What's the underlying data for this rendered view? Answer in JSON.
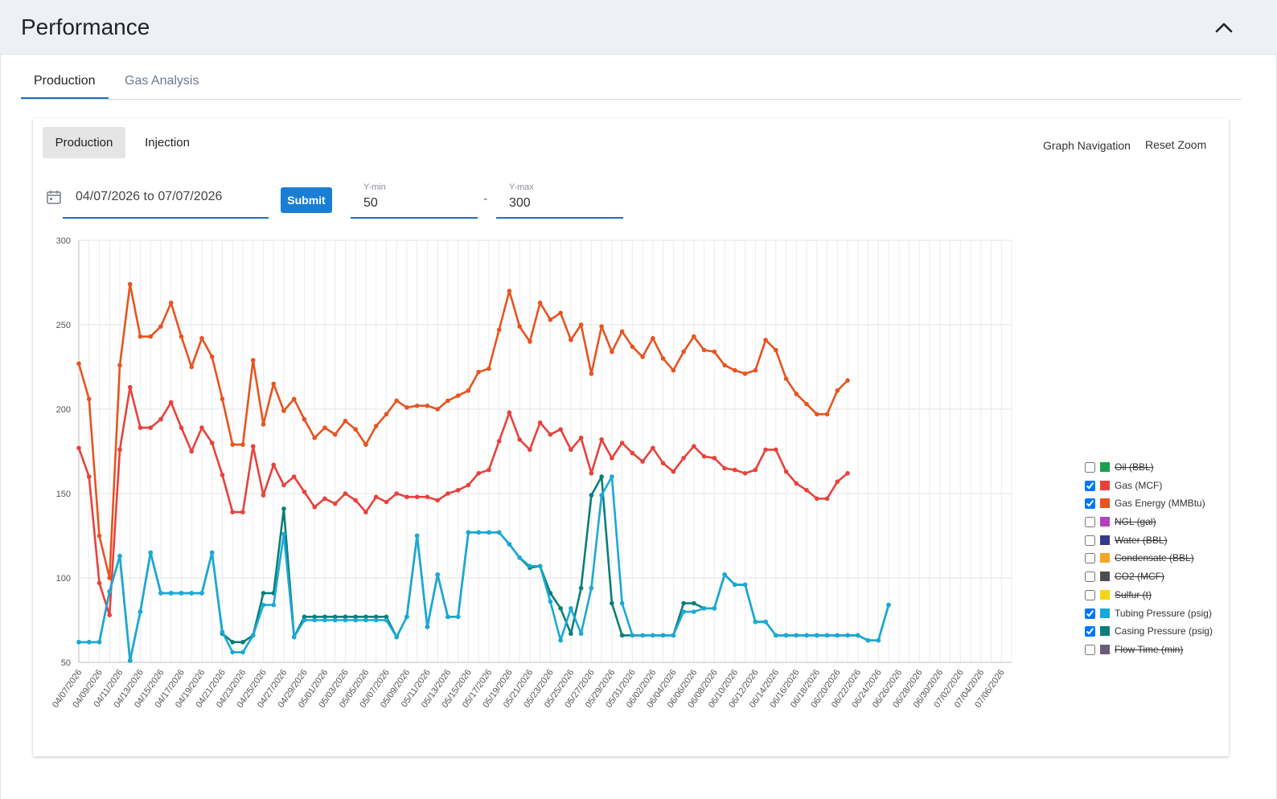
{
  "header": {
    "title": "Performance"
  },
  "tabs": [
    {
      "label": "Production",
      "active": true
    },
    {
      "label": "Gas Analysis",
      "active": false
    }
  ],
  "mode_buttons": [
    {
      "label": "Production",
      "active": true
    },
    {
      "label": "Injection",
      "active": false
    }
  ],
  "controls": {
    "graph_navigation": "Graph Navigation",
    "reset_zoom": "Reset Zoom",
    "date_range": "04/07/2026 to 07/07/2026",
    "submit": "Submit",
    "ymin_label": "Y-min",
    "ymin_value": "50",
    "ymax_label": "Y-max",
    "ymax_value": "300",
    "separator": "-"
  },
  "colors": {
    "accent": "#1f6fc1",
    "button": "#1a7fd4",
    "header_bg": "#eef0f5"
  },
  "icons": {
    "collapse": "chevron-up-icon",
    "calendar": "calendar-icon"
  },
  "legend": [
    {
      "label": "Oil (BBL)",
      "color": "#18a050",
      "checked": false
    },
    {
      "label": "Gas (MCF)",
      "color": "#e8413c",
      "checked": true
    },
    {
      "label": "Gas Energy (MMBtu)",
      "color": "#e8531f",
      "checked": true
    },
    {
      "label": "NGL (gal)",
      "color": "#b53fbf",
      "checked": false
    },
    {
      "label": "Water (BBL)",
      "color": "#35398c",
      "checked": false
    },
    {
      "label": "Condensate (BBL)",
      "color": "#f5a623",
      "checked": false
    },
    {
      "label": "CO2 (MCF)",
      "color": "#4a4f55",
      "checked": false
    },
    {
      "label": "Sulfur (t)",
      "color": "#f7d416",
      "checked": false
    },
    {
      "label": "Tubing Pressure (psig)",
      "color": "#1aa9d6",
      "checked": true
    },
    {
      "label": "Casing Pressure (psig)",
      "color": "#0a7e78",
      "checked": true
    },
    {
      "label": "Flow Time (min)",
      "color": "#6b5d7a",
      "checked": false
    }
  ],
  "chart_data": {
    "type": "line",
    "ylim": [
      50,
      300
    ],
    "yticks": [
      50,
      100,
      150,
      200,
      250,
      300
    ],
    "x_range": [
      "04/07/2026",
      "07/07/2026"
    ],
    "xticks": [
      "04/07/2026",
      "04/09/2026",
      "04/11/2026",
      "04/13/2026",
      "04/15/2026",
      "04/17/2026",
      "04/19/2026",
      "04/21/2026",
      "04/23/2026",
      "04/25/2026",
      "04/27/2026",
      "04/29/2026",
      "05/01/2026",
      "05/03/2026",
      "05/05/2026",
      "05/07/2026",
      "05/09/2026",
      "05/11/2026",
      "05/13/2026",
      "05/15/2026",
      "05/17/2026",
      "05/19/2026",
      "05/21/2026",
      "05/23/2026",
      "05/25/2026",
      "05/27/2026",
      "05/29/2026",
      "05/31/2026",
      "06/02/2026",
      "06/04/2026",
      "06/06/2026",
      "06/08/2026",
      "06/10/2026",
      "06/12/2026",
      "06/14/2026",
      "06/16/2026",
      "06/18/2026",
      "06/20/2026",
      "06/22/2026",
      "06/24/2026",
      "06/26/2026",
      "06/28/2026",
      "06/30/2026",
      "07/02/2026",
      "07/04/2026",
      "07/06/2026"
    ],
    "grid": true,
    "legend_position": "right",
    "series": [
      {
        "name": "Gas Energy (MMBtu)",
        "color": "#e8531f",
        "values": [
          227,
          206,
          125,
          100,
          226,
          274,
          243,
          243,
          249,
          263,
          243,
          225,
          242,
          231,
          206,
          179,
          179,
          229,
          191,
          215,
          199,
          206,
          194,
          183,
          189,
          185,
          193,
          188,
          179,
          190,
          197,
          205,
          201,
          202,
          202,
          200,
          205,
          208,
          211,
          222,
          224,
          247,
          270,
          249,
          240,
          263,
          253,
          257,
          241,
          250,
          221,
          249,
          234,
          246,
          237,
          231,
          242,
          230,
          223,
          234,
          243,
          235,
          234,
          226,
          223,
          221,
          223,
          241,
          235,
          218,
          209,
          203,
          197,
          197,
          211,
          217
        ]
      },
      {
        "name": "Gas (MCF)",
        "color": "#e8413c",
        "values": [
          177,
          160,
          97,
          78,
          176,
          213,
          189,
          189,
          194,
          204,
          189,
          175,
          189,
          180,
          161,
          139,
          139,
          178,
          149,
          167,
          155,
          160,
          151,
          142,
          147,
          144,
          150,
          146,
          139,
          148,
          145,
          150,
          148,
          148,
          148,
          146,
          150,
          152,
          155,
          162,
          164,
          181,
          198,
          182,
          176,
          192,
          185,
          188,
          176,
          183,
          162,
          182,
          171,
          180,
          174,
          169,
          177,
          168,
          163,
          171,
          178,
          172,
          171,
          165,
          164,
          162,
          164,
          176,
          176,
          163,
          156,
          152,
          147,
          147,
          157,
          162
        ]
      },
      {
        "name": "Casing Pressure (psig)",
        "color": "#0a7e78",
        "values": [
          62,
          62,
          62,
          92,
          113,
          51,
          80,
          115,
          91,
          91,
          91,
          91,
          91,
          115,
          67,
          62,
          62,
          66,
          91,
          91,
          141,
          65,
          77,
          77,
          77,
          77,
          77,
          77,
          77,
          77,
          77,
          65,
          77,
          125,
          71,
          102,
          77,
          77,
          127,
          127,
          127,
          127,
          120,
          112,
          106,
          107,
          91,
          82,
          67,
          94,
          149,
          160,
          85,
          66,
          66,
          66,
          66,
          66,
          66,
          85,
          85,
          82,
          82,
          102,
          96,
          96,
          74,
          74,
          66,
          66,
          66,
          66,
          66,
          66,
          66,
          66,
          66,
          63,
          63,
          84
        ]
      },
      {
        "name": "Tubing Pressure (psig)",
        "color": "#1aa9d6",
        "values": [
          62,
          62,
          62,
          92,
          113,
          51,
          80,
          115,
          91,
          91,
          91,
          91,
          91,
          115,
          68,
          56,
          56,
          66,
          84,
          84,
          126,
          65,
          75,
          75,
          75,
          75,
          75,
          75,
          75,
          75,
          75,
          65,
          77,
          125,
          71,
          102,
          77,
          77,
          127,
          127,
          127,
          127,
          120,
          112,
          107,
          107,
          86,
          63,
          82,
          67,
          94,
          149,
          160,
          85,
          66,
          66,
          66,
          66,
          66,
          80,
          80,
          82,
          82,
          102,
          96,
          96,
          74,
          74,
          66,
          66,
          66,
          66,
          66,
          66,
          66,
          66,
          66,
          63,
          63,
          84
        ]
      }
    ]
  }
}
